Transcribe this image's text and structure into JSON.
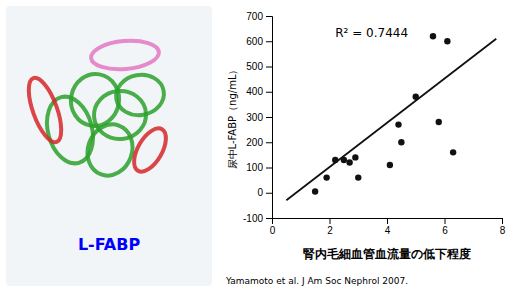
{
  "chart_data": {
    "type": "scatter",
    "series": [
      {
        "type": "scatter",
        "color": "#111111",
        "x": [
          1.5,
          1.9,
          2.2,
          2.5,
          2.7,
          2.9,
          3.0,
          4.1,
          4.4,
          4.5,
          5.0,
          5.6,
          5.8,
          6.1,
          6.3
        ],
        "values": [
          5,
          60,
          130,
          130,
          120,
          140,
          60,
          110,
          270,
          200,
          380,
          620,
          280,
          600,
          160
        ]
      },
      {
        "type": "line",
        "color": "#111111",
        "x": [
          0.5,
          7.8
        ],
        "values": [
          -30,
          610
        ]
      }
    ],
    "x_label": "腎内毛細血管血流量の低下程度",
    "y_label": "尿中L-FABP（ng/mL）",
    "annotations": [
      {
        "text": "R² = 0.7444",
        "x": 2.2,
        "y": 650
      },
      {
        "text": "L-FABP",
        "color": "#0000ff"
      },
      {
        "text": "Yamamoto et al. J Am Soc Nephrol 2007."
      }
    ],
    "xlim": [
      0,
      8
    ],
    "ylim": [
      -100,
      700
    ],
    "xticks": [
      0,
      2,
      4,
      6,
      8
    ],
    "yticks": [
      -100,
      0,
      100,
      200,
      300,
      400,
      500,
      600,
      700
    ],
    "grid": false
  }
}
